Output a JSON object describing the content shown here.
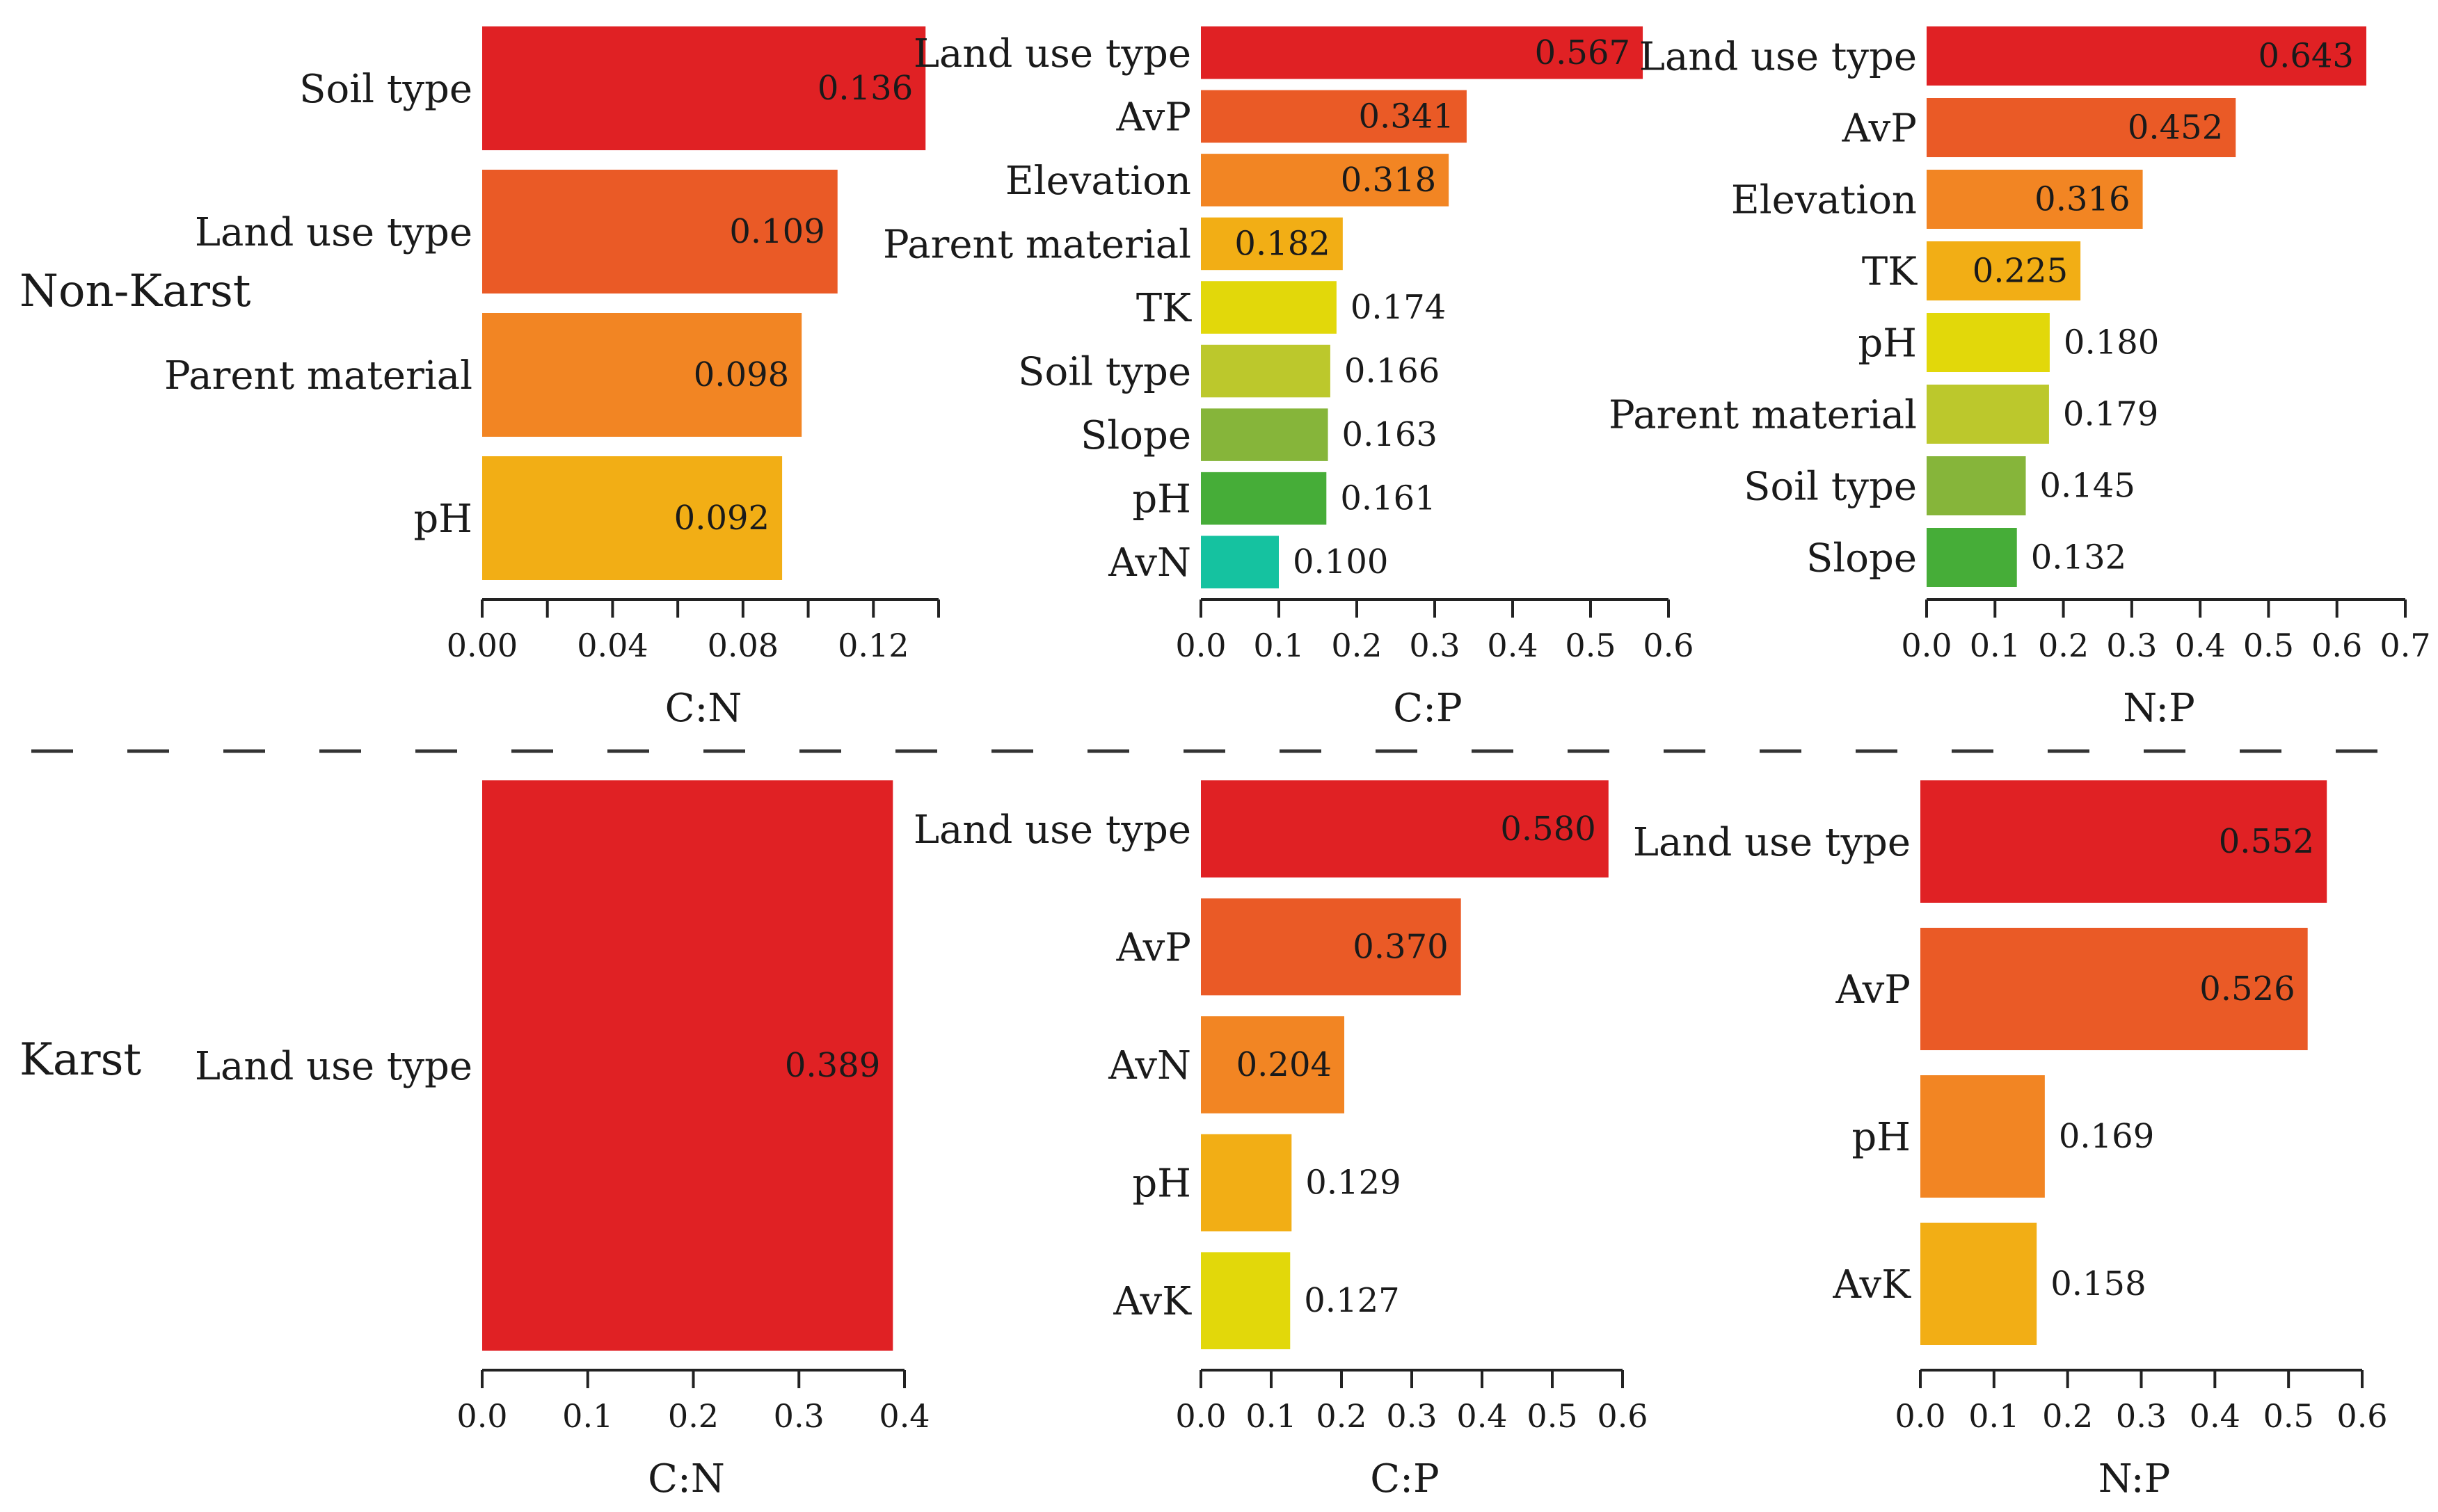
{
  "groups": [
    "Non-Karst",
    "Karst"
  ],
  "colors": {
    "ranks": [
      "#e02124",
      "#ea5a26",
      "#f28523",
      "#f2ae15",
      "#e2d80a",
      "#bcc82c",
      "#86b53a",
      "#46ad38",
      "#15c2a0"
    ]
  },
  "chart_data": [
    {
      "type": "bar",
      "group": "Non-Karst",
      "xlabel": "C:N",
      "categories": [
        "Soil type",
        "Land use type",
        "Parent material",
        "pH"
      ],
      "values": [
        0.136,
        0.109,
        0.098,
        0.092
      ],
      "value_labels": [
        "0.136",
        "0.109",
        "0.098",
        "0.092"
      ],
      "xlim": [
        0,
        0.14
      ],
      "xticks": [
        0.0,
        0.04,
        0.08,
        0.12
      ],
      "xtick_labels": [
        "0.00",
        "0.04",
        "0.08",
        "0.12"
      ],
      "minor_ticks": true
    },
    {
      "type": "bar",
      "group": "Non-Karst",
      "xlabel": "C:P",
      "categories": [
        "Land use type",
        "AvP",
        "Elevation",
        "Parent material",
        "TK",
        "Soil type",
        "Slope",
        "pH",
        "AvN"
      ],
      "values": [
        0.567,
        0.341,
        0.318,
        0.182,
        0.174,
        0.166,
        0.163,
        0.161,
        0.1
      ],
      "value_labels": [
        "0.567",
        "0.341",
        "0.318",
        "0.182",
        "0.174",
        "0.166",
        "0.163",
        "0.161",
        "0.100"
      ],
      "xlim": [
        0,
        0.6
      ],
      "xticks": [
        0,
        0.1,
        0.2,
        0.3,
        0.4,
        0.5,
        0.6
      ],
      "xtick_labels": [
        "0.0",
        "0.1",
        "0.2",
        "0.3",
        "0.4",
        "0.5",
        "0.6"
      ]
    },
    {
      "type": "bar",
      "group": "Non-Karst",
      "xlabel": "N:P",
      "categories": [
        "Land use type",
        "AvP",
        "Elevation",
        "TK",
        "pH",
        "Parent material",
        "Soil type",
        "Slope"
      ],
      "values": [
        0.643,
        0.452,
        0.316,
        0.225,
        0.18,
        0.179,
        0.145,
        0.132
      ],
      "value_labels": [
        "0.643",
        "0.452",
        "0.316",
        "0.225",
        "0.180",
        "0.179",
        "0.145",
        "0.132"
      ],
      "xlim": [
        0,
        0.7
      ],
      "xticks": [
        0,
        0.1,
        0.2,
        0.3,
        0.4,
        0.5,
        0.6,
        0.7
      ],
      "xtick_labels": [
        "0.0",
        "0.1",
        "0.2",
        "0.3",
        "0.4",
        "0.5",
        "0.6",
        "0.7"
      ]
    },
    {
      "type": "bar",
      "group": "Karst",
      "xlabel": "C:N",
      "categories": [
        "Land use type"
      ],
      "values": [
        0.389
      ],
      "value_labels": [
        "0.389"
      ],
      "xlim": [
        0,
        0.4
      ],
      "xticks": [
        0,
        0.1,
        0.2,
        0.3,
        0.4
      ],
      "xtick_labels": [
        "0.0",
        "0.1",
        "0.2",
        "0.3",
        "0.4"
      ]
    },
    {
      "type": "bar",
      "group": "Karst",
      "xlabel": "C:P",
      "categories": [
        "Land use type",
        "AvP",
        "AvN",
        "pH",
        "AvK"
      ],
      "values": [
        0.58,
        0.37,
        0.204,
        0.129,
        0.127
      ],
      "value_labels": [
        "0.580",
        "0.370",
        "0.204",
        "0.129",
        "0.127"
      ],
      "xlim": [
        0,
        0.6
      ],
      "xticks": [
        0,
        0.1,
        0.2,
        0.3,
        0.4,
        0.5,
        0.6
      ],
      "xtick_labels": [
        "0.0",
        "0.1",
        "0.2",
        "0.3",
        "0.4",
        "0.5",
        "0.6"
      ]
    },
    {
      "type": "bar",
      "group": "Karst",
      "xlabel": "N:P",
      "categories": [
        "Land use type",
        "AvP",
        "pH",
        "AvK"
      ],
      "values": [
        0.552,
        0.526,
        0.169,
        0.158
      ],
      "value_labels": [
        "0.552",
        "0.526",
        "0.169",
        "0.158"
      ],
      "xlim": [
        0,
        0.6
      ],
      "xticks": [
        0,
        0.1,
        0.2,
        0.3,
        0.4,
        0.5,
        0.6
      ],
      "xtick_labels": [
        "0.0",
        "0.1",
        "0.2",
        "0.3",
        "0.4",
        "0.5",
        "0.6"
      ]
    }
  ]
}
